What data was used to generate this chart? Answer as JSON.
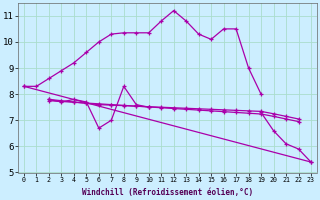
{
  "background_color": "#cceeff",
  "grid_color": "#aaddcc",
  "line_color": "#aa00aa",
  "xlim": [
    -0.5,
    23.5
  ],
  "ylim": [
    5,
    11.5
  ],
  "yticks": [
    5,
    6,
    7,
    8,
    9,
    10,
    11
  ],
  "xticks": [
    0,
    1,
    2,
    3,
    4,
    5,
    6,
    7,
    8,
    9,
    10,
    11,
    12,
    13,
    14,
    15,
    16,
    17,
    18,
    19,
    20,
    21,
    22,
    23
  ],
  "xlabel": "Windchill (Refroidissement éolien,°C)",
  "lines": [
    {
      "x": [
        0,
        1,
        2,
        3,
        4,
        5,
        6,
        7,
        8,
        9,
        10,
        11,
        12,
        13,
        14,
        15,
        16,
        17,
        18,
        19
      ],
      "y": [
        8.3,
        8.3,
        8.6,
        8.9,
        9.2,
        9.6,
        10.0,
        10.3,
        10.35,
        10.35,
        10.35,
        10.8,
        11.2,
        10.8,
        10.3,
        10.1,
        10.5,
        10.5,
        9.0,
        8.0
      ]
    },
    {
      "x": [
        2,
        3,
        4,
        5,
        6,
        7,
        8,
        9,
        10
      ],
      "y": [
        7.8,
        7.7,
        7.8,
        7.7,
        6.7,
        7.0,
        8.3,
        7.6,
        7.5
      ]
    },
    {
      "x": [
        19,
        20,
        21,
        22,
        23
      ],
      "y": [
        7.3,
        6.6,
        6.1,
        5.9,
        5.4
      ]
    },
    {
      "x": [
        2,
        3,
        4,
        5,
        6,
        7,
        8,
        9,
        10,
        11,
        12,
        13,
        14,
        15,
        16,
        17,
        18,
        19,
        20,
        21,
        22
      ],
      "y": [
        7.8,
        7.75,
        7.7,
        7.65,
        7.6,
        7.58,
        7.56,
        7.54,
        7.52,
        7.5,
        7.48,
        7.46,
        7.44,
        7.42,
        7.4,
        7.38,
        7.36,
        7.34,
        7.25,
        7.15,
        7.05
      ]
    },
    {
      "x": [
        2,
        3,
        4,
        5,
        6,
        7,
        8,
        9,
        10,
        11,
        12,
        13,
        14,
        15,
        16,
        17,
        18,
        19,
        20,
        21,
        22
      ],
      "y": [
        7.75,
        7.72,
        7.69,
        7.66,
        7.63,
        7.6,
        7.57,
        7.54,
        7.51,
        7.48,
        7.45,
        7.42,
        7.39,
        7.36,
        7.33,
        7.3,
        7.27,
        7.24,
        7.15,
        7.05,
        6.95
      ]
    },
    {
      "comment": "diagonal from (0,8.3) to (23,5.4)",
      "x": [
        0,
        23
      ],
      "y": [
        8.3,
        5.4
      ]
    }
  ]
}
